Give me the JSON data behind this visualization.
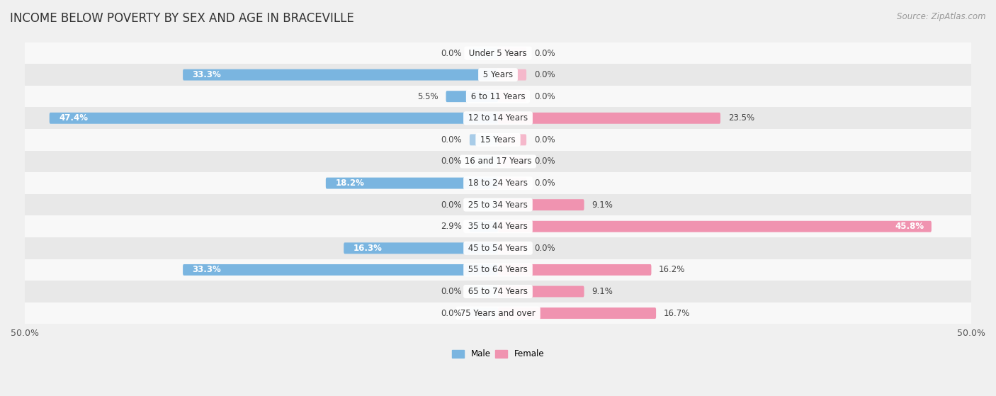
{
  "title": "INCOME BELOW POVERTY BY SEX AND AGE IN BRACEVILLE",
  "source": "Source: ZipAtlas.com",
  "categories": [
    "Under 5 Years",
    "5 Years",
    "6 to 11 Years",
    "12 to 14 Years",
    "15 Years",
    "16 and 17 Years",
    "18 to 24 Years",
    "25 to 34 Years",
    "35 to 44 Years",
    "45 to 54 Years",
    "55 to 64 Years",
    "65 to 74 Years",
    "75 Years and over"
  ],
  "male": [
    0.0,
    33.3,
    5.5,
    47.4,
    0.0,
    0.0,
    18.2,
    0.0,
    2.9,
    16.3,
    33.3,
    0.0,
    0.0
  ],
  "female": [
    0.0,
    0.0,
    0.0,
    23.5,
    0.0,
    0.0,
    0.0,
    9.1,
    45.8,
    0.0,
    16.2,
    9.1,
    16.7
  ],
  "male_color": "#7ab5e0",
  "female_color": "#f093b0",
  "male_color_light": "#a8cce8",
  "female_color_light": "#f5b8cb",
  "bar_height": 0.52,
  "min_bar": 3.0,
  "xlim": 50.0,
  "background_color": "#f0f0f0",
  "row_color_odd": "#f8f8f8",
  "row_color_even": "#e8e8e8",
  "title_fontsize": 12,
  "label_fontsize": 8.5,
  "tick_fontsize": 9,
  "source_fontsize": 8.5,
  "cat_fontsize": 8.5
}
